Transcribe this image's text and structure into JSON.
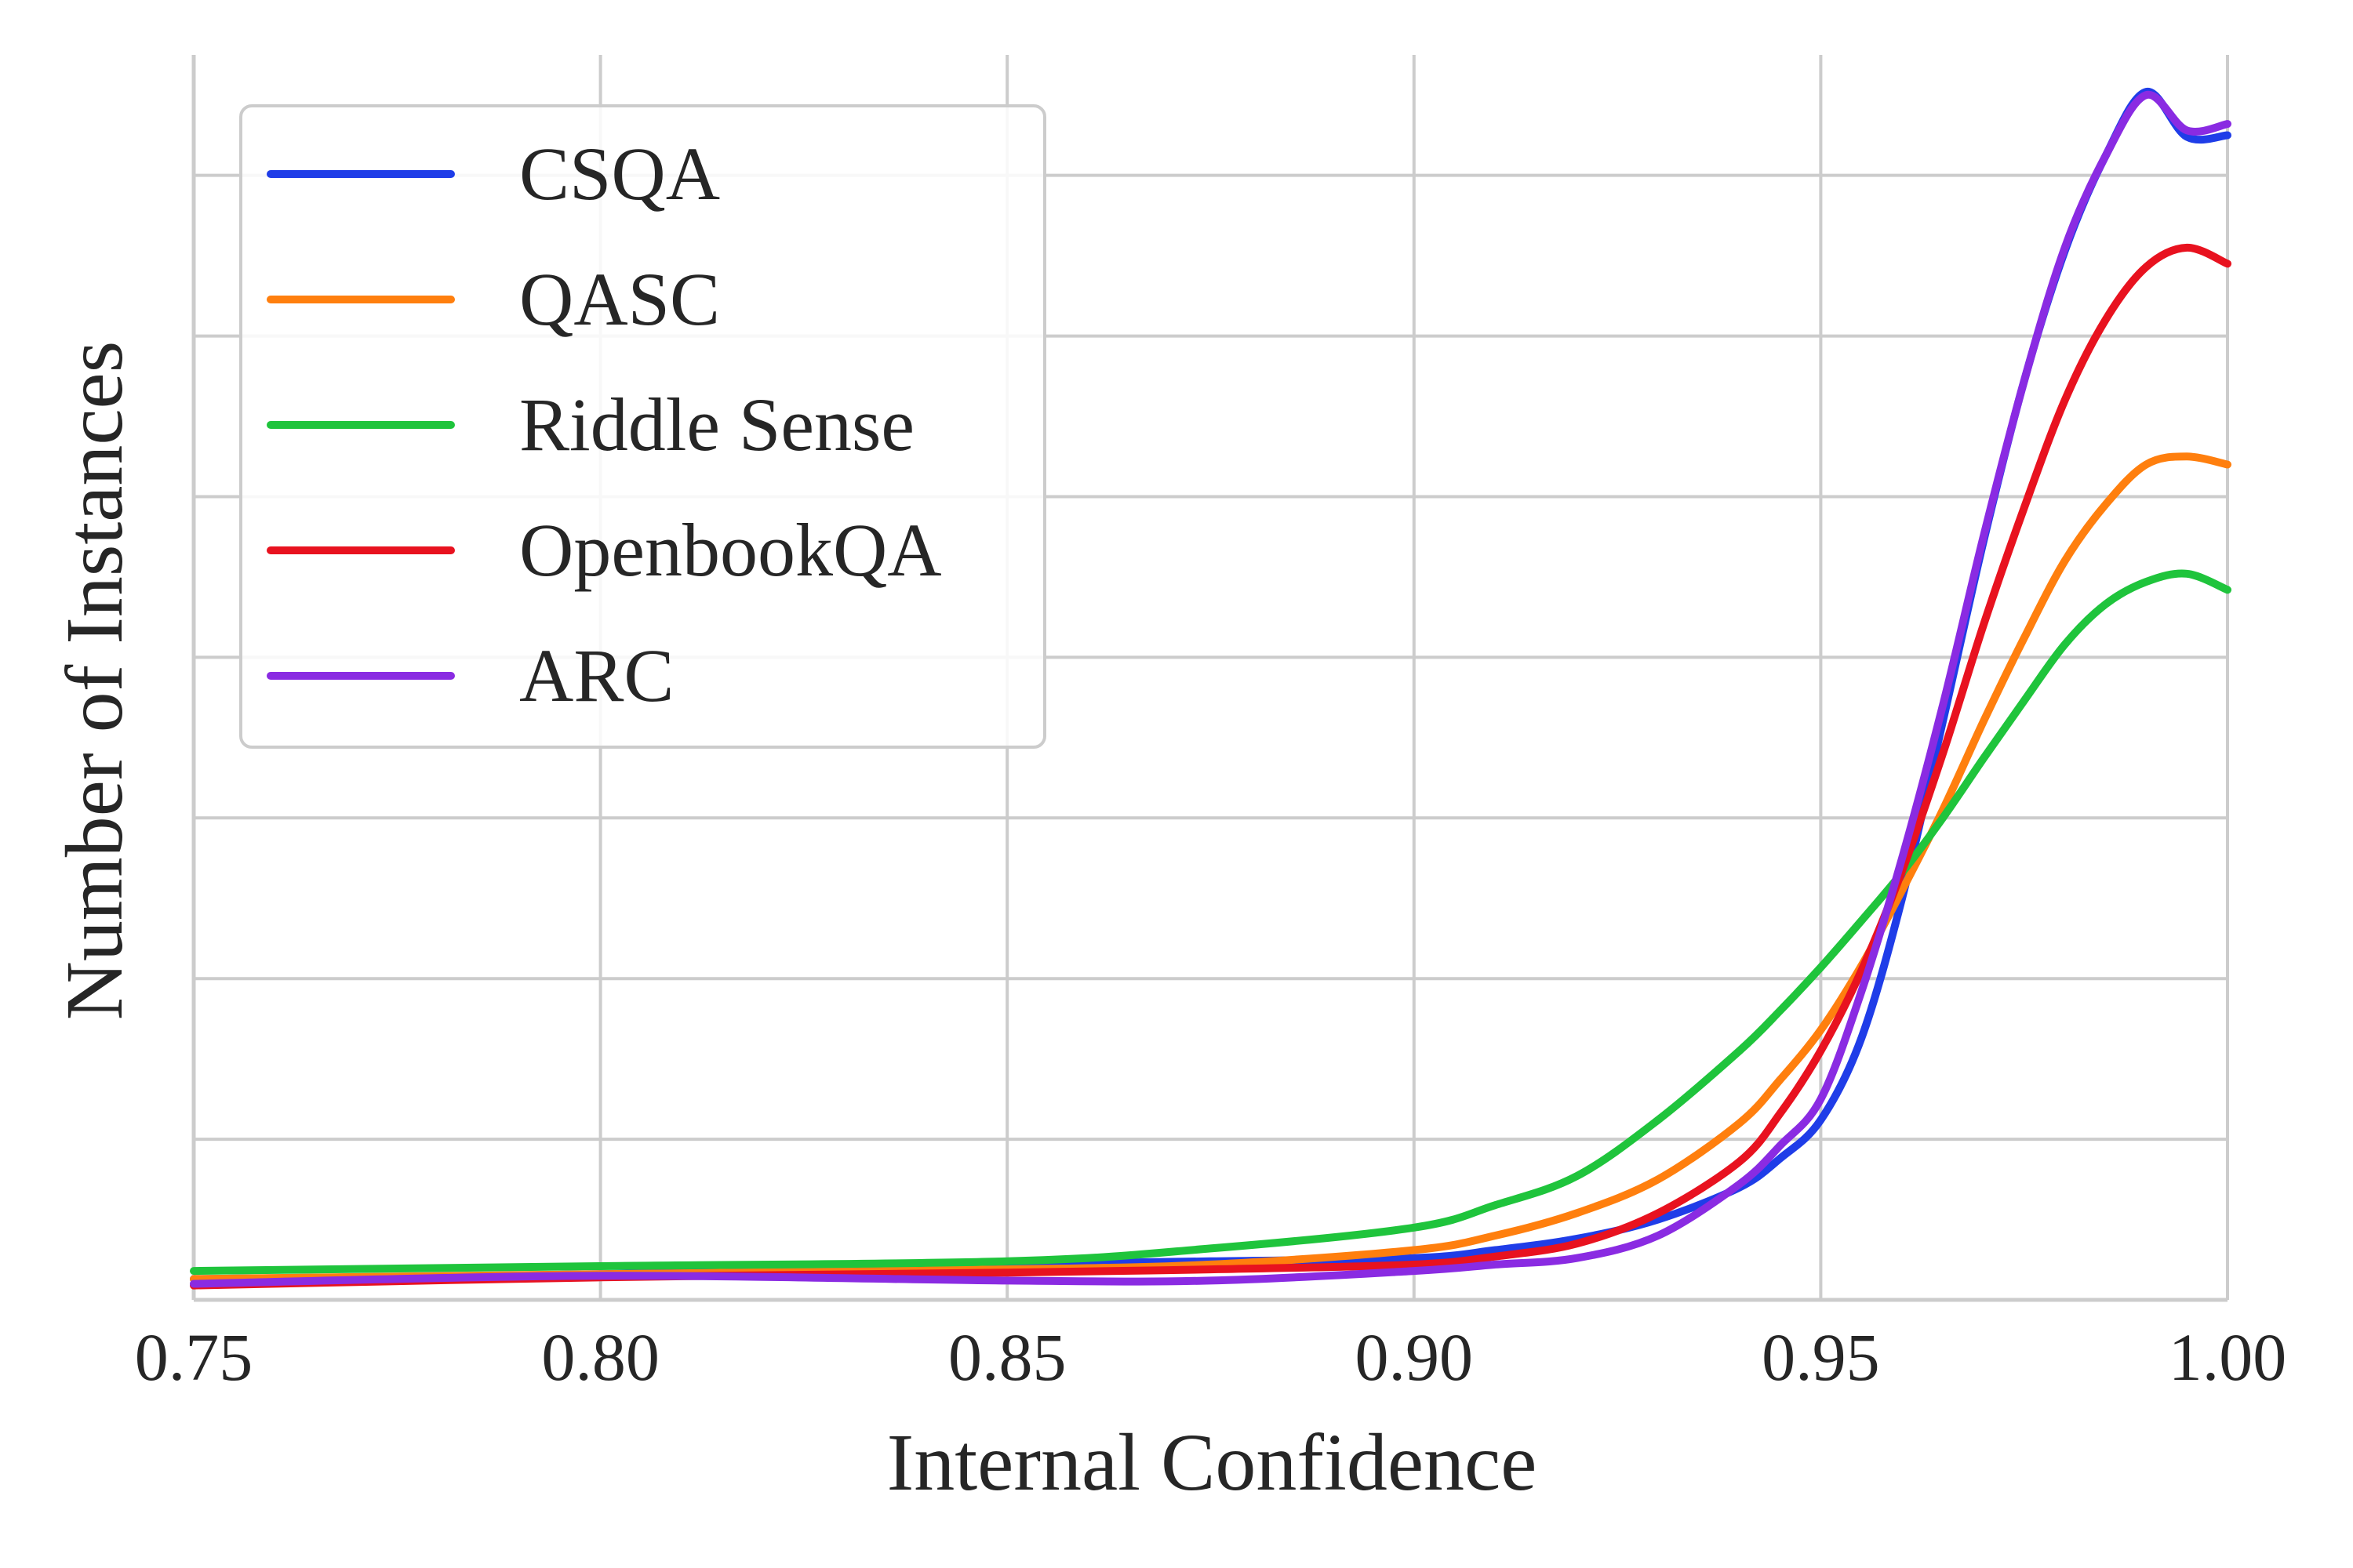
{
  "chart_data": {
    "type": "line",
    "title": "",
    "xlabel": "Internal Confidence",
    "ylabel": "Number of Instances",
    "xlim": [
      0.75,
      1.0
    ],
    "ylim": [
      0,
      7.75
    ],
    "x_ticks": [
      0.75,
      0.8,
      0.85,
      0.9,
      0.95,
      1.0
    ],
    "x_tick_labels": [
      "0.75",
      "0.80",
      "0.85",
      "0.90",
      "0.95",
      "1.00"
    ],
    "y_gridlines": [
      1,
      2,
      3,
      4,
      5,
      6,
      7
    ],
    "y_tick_labels_shown": false,
    "grid": true,
    "legend_position": "top-left",
    "x": [
      0.75,
      0.8,
      0.85,
      0.875,
      0.9,
      0.91,
      0.92,
      0.93,
      0.94,
      0.945,
      0.95,
      0.955,
      0.96,
      0.965,
      0.97,
      0.975,
      0.98,
      0.985,
      0.99,
      0.995,
      1.0
    ],
    "series": [
      {
        "name": "CSQA",
        "color": "#1f3de8",
        "values": [
          0.13,
          0.16,
          0.22,
          0.24,
          0.26,
          0.31,
          0.38,
          0.5,
          0.7,
          0.88,
          1.12,
          1.63,
          2.5,
          3.6,
          4.72,
          5.72,
          6.53,
          7.12,
          7.52,
          7.24,
          7.25
        ]
      },
      {
        "name": "QASC",
        "color": "#ff7f0e",
        "values": [
          0.13,
          0.16,
          0.19,
          0.22,
          0.31,
          0.4,
          0.54,
          0.75,
          1.1,
          1.37,
          1.68,
          2.08,
          2.55,
          3.05,
          3.6,
          4.12,
          4.6,
          4.95,
          5.2,
          5.25,
          5.2
        ]
      },
      {
        "name": "Riddle Sense",
        "color": "#1fc43c",
        "values": [
          0.18,
          0.21,
          0.24,
          0.32,
          0.45,
          0.59,
          0.77,
          1.12,
          1.55,
          1.8,
          2.07,
          2.36,
          2.66,
          3.0,
          3.37,
          3.73,
          4.08,
          4.33,
          4.47,
          4.52,
          4.42
        ]
      },
      {
        "name": "OpenbookQA",
        "color": "#e8121f",
        "values": [
          0.09,
          0.14,
          0.17,
          0.19,
          0.22,
          0.27,
          0.35,
          0.54,
          0.86,
          1.16,
          1.55,
          2.05,
          2.67,
          3.4,
          4.2,
          4.93,
          5.6,
          6.1,
          6.43,
          6.55,
          6.45
        ]
      },
      {
        "name": "ARC",
        "color": "#8a2be2",
        "values": [
          0.1,
          0.15,
          0.12,
          0.12,
          0.18,
          0.22,
          0.26,
          0.4,
          0.72,
          0.96,
          1.25,
          1.92,
          2.75,
          3.7,
          4.75,
          5.72,
          6.55,
          7.12,
          7.5,
          7.28,
          7.32
        ]
      }
    ]
  }
}
